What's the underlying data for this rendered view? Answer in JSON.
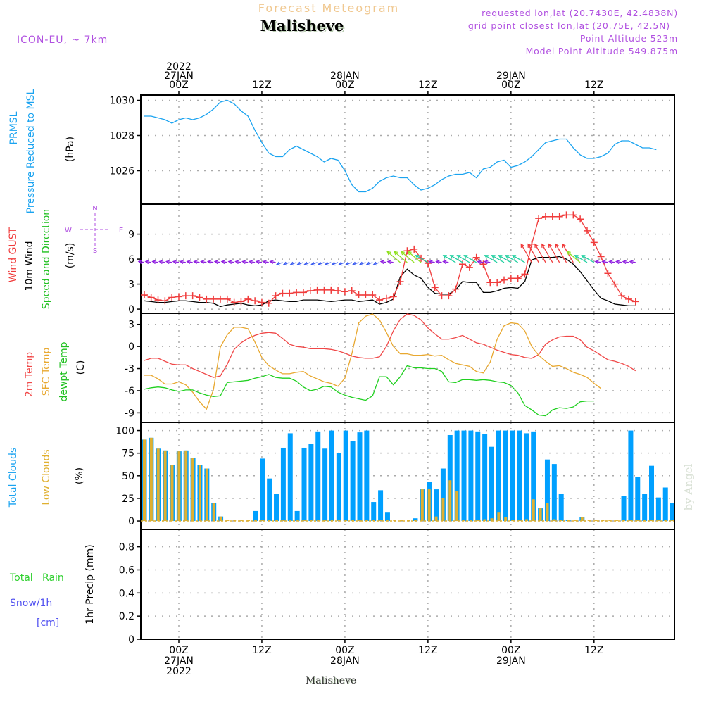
{
  "header": {
    "subtitle": "Forecast Meteogram",
    "title": "Malisheve",
    "model": "ICON-EU, ~ 7km",
    "requested": "requested lon,lat (20.7430E, 42.4838N)",
    "grid_point": "grid point closest lon,lat (20.75E, 42.5N)",
    "point_altitude": "Point Altitude 523m",
    "model_altitude": "Model Point Altitude 549.875m",
    "footer_station": "Malisheve",
    "watermark": "by Angel"
  },
  "colors": {
    "pressure": "#1aa3f0",
    "gust": "#f03c3c",
    "wind10m": "#000000",
    "temp2m": "#f04848",
    "sfc_temp": "#e8a830",
    "dewpt": "#20d020",
    "total_clouds": "#00a0ff",
    "low_clouds": "#e0b030",
    "rain_label": "#30d030",
    "snow_label": "#5050f0",
    "header_purple": "#b050e0",
    "subtitle": "#f0c890"
  },
  "time_axis": {
    "top_labels": [
      {
        "hour": 0,
        "lines": [
          "2022",
          "27JAN",
          "00Z"
        ]
      },
      {
        "hour": 12,
        "lines": [
          "12Z"
        ]
      },
      {
        "hour": 24,
        "lines": [
          "28JAN",
          "00Z"
        ]
      },
      {
        "hour": 36,
        "lines": [
          "12Z"
        ]
      },
      {
        "hour": 48,
        "lines": [
          "29JAN",
          "00Z"
        ]
      },
      {
        "hour": 60,
        "lines": [
          "12Z"
        ]
      }
    ],
    "bottom_labels": [
      {
        "hour": 0,
        "lines": [
          "00Z",
          "27JAN",
          "2022"
        ]
      },
      {
        "hour": 12,
        "lines": [
          "12Z"
        ]
      },
      {
        "hour": 24,
        "lines": [
          "00Z",
          "28JAN"
        ]
      },
      {
        "hour": 36,
        "lines": [
          "12Z"
        ]
      },
      {
        "hour": 48,
        "lines": [
          "00Z",
          "29JAN"
        ]
      },
      {
        "hour": 60,
        "lines": [
          "12Z"
        ]
      }
    ]
  },
  "compass": {
    "n": "N",
    "s": "S",
    "w": "W",
    "e": "E",
    "arrows": "<-|->"
  },
  "panels": {
    "pressure": {
      "labels": [
        "PRMSL",
        "Pressure Reduced to MSL"
      ],
      "unit": "(hPa)",
      "ticks": [
        1026,
        1028,
        1030
      ]
    },
    "wind": {
      "labels": [
        "Wind GUST",
        "10m Wind",
        "Speed and Direction"
      ],
      "unit": "(m/s)",
      "ticks": [
        0,
        3,
        6,
        9
      ]
    },
    "temp": {
      "labels": [
        "2m Temp",
        "SFC Temp",
        "dewpt Temp"
      ],
      "unit": "(C)",
      "ticks": [
        -9,
        -6,
        -3,
        0,
        3
      ]
    },
    "clouds": {
      "labels": [
        "Total Clouds",
        "Low Clouds"
      ],
      "unit": "(%)",
      "ticks": [
        0,
        25,
        50,
        75,
        100
      ]
    },
    "precip": {
      "labels": [
        "Total   Rain",
        "Snow/1h",
        "[cm]"
      ],
      "unit": "1hr Precip (mm)",
      "ticks": [
        "0",
        "0.2",
        "0.4",
        "0.6",
        "0.8"
      ]
    }
  },
  "chart_data": [
    {
      "type": "line",
      "title": "PRMSL Pressure Reduced to MSL",
      "ylabel": "hPa",
      "ylim": [
        1024.1,
        1030.3
      ],
      "x_hours_start": -5,
      "x_hours_step": 1,
      "series": [
        {
          "name": "PRMSL",
          "values": [
            1029.1,
            1029.1,
            1029.0,
            1028.9,
            1028.7,
            1028.9,
            1029.0,
            1028.9,
            1029.0,
            1029.2,
            1029.5,
            1029.9,
            1030.0,
            1029.8,
            1029.4,
            1029.1,
            1028.3,
            1027.6,
            1027.0,
            1026.8,
            1026.8,
            1027.2,
            1027.4,
            1027.2,
            1027.0,
            1026.8,
            1026.5,
            1026.7,
            1026.6,
            1026.0,
            1025.2,
            1024.8,
            1024.8,
            1025.0,
            1025.4,
            1025.6,
            1025.7,
            1025.6,
            1025.6,
            1025.2,
            1024.9,
            1025.0,
            1025.2,
            1025.5,
            1025.7,
            1025.8,
            1025.8,
            1025.9,
            1025.6,
            1026.1,
            1026.2,
            1026.5,
            1026.6,
            1026.2,
            1026.3,
            1026.5,
            1026.8,
            1027.2,
            1027.6,
            1027.7,
            1027.8,
            1027.8,
            1027.3,
            1026.9,
            1026.7,
            1026.7,
            1026.8,
            1027.0,
            1027.5,
            1027.7,
            1027.7,
            1027.5,
            1027.3,
            1027.3,
            1027.2
          ]
        }
      ]
    },
    {
      "type": "line",
      "title": "Wind GUST / 10m Wind Speed and Direction",
      "ylabel": "m/s",
      "ylim": [
        -0.5,
        12.6
      ],
      "x_hours_start": -5,
      "x_hours_step": 1,
      "series": [
        {
          "name": "Wind GUST",
          "values": [
            1.7,
            1.4,
            1.1,
            1.0,
            1.4,
            1.5,
            1.6,
            1.6,
            1.4,
            1.2,
            1.2,
            1.2,
            1.2,
            0.8,
            0.9,
            1.2,
            1.0,
            0.8,
            0.7,
            1.6,
            1.9,
            1.9,
            2.0,
            2.0,
            2.2,
            2.3,
            2.3,
            2.3,
            2.2,
            2.1,
            2.2,
            1.7,
            1.7,
            1.7,
            1.1,
            1.3,
            1.5,
            3.3,
            7.0,
            7.2,
            6.1,
            5.5,
            2.6,
            1.6,
            1.6,
            2.4,
            5.4,
            5.0,
            6.2,
            5.4,
            3.2,
            3.2,
            3.5,
            3.7,
            3.7,
            4.2,
            7.8,
            10.9,
            11.1,
            11.1,
            11.1,
            11.3,
            11.3,
            10.8,
            9.4,
            8.0,
            6.3,
            4.3,
            3.0,
            1.6,
            1.2,
            0.9
          ]
        },
        {
          "name": "10m Wind",
          "values": [
            1.0,
            0.9,
            0.8,
            0.8,
            0.9,
            1.0,
            1.0,
            0.9,
            0.8,
            0.8,
            0.7,
            0.3,
            0.5,
            0.6,
            0.7,
            0.5,
            0.4,
            0.5,
            1.0,
            1.1,
            1.0,
            0.9,
            0.9,
            1.1,
            1.1,
            1.1,
            1.0,
            0.9,
            1.0,
            1.1,
            1.1,
            0.9,
            1.0,
            1.1,
            0.6,
            0.8,
            1.2,
            3.9,
            4.8,
            4.1,
            3.7,
            2.6,
            1.9,
            1.8,
            1.8,
            2.3,
            3.3,
            3.2,
            3.2,
            2.0,
            2.0,
            2.2,
            2.5,
            2.6,
            2.5,
            3.3,
            5.9,
            6.2,
            6.2,
            6.2,
            6.3,
            6.0,
            5.4,
            4.5,
            3.4,
            2.3,
            1.3,
            1.0,
            0.6,
            0.5,
            0.4,
            0.4
          ]
        }
      ],
      "direction_arrows_level": 5.6
    },
    {
      "type": "line",
      "title": "2m Temp / SFC Temp / dewpt Temp",
      "ylabel": "C",
      "ylim": [
        -10.3,
        4.5
      ],
      "x_hours_start": -5,
      "x_hours_step": 1,
      "series": [
        {
          "name": "2m Temp",
          "values": [
            -1.9,
            -1.6,
            -1.6,
            -2.0,
            -2.4,
            -2.5,
            -2.5,
            -3.0,
            -3.4,
            -3.8,
            -4.2,
            -4.0,
            -2.4,
            -0.4,
            0.5,
            1.1,
            1.5,
            1.8,
            1.9,
            1.8,
            1.1,
            0.3,
            0.0,
            -0.1,
            -0.3,
            -0.3,
            -0.3,
            -0.4,
            -0.6,
            -0.9,
            -1.3,
            -1.5,
            -1.6,
            -1.6,
            -1.4,
            0.0,
            2.1,
            3.7,
            4.4,
            4.2,
            3.6,
            2.5,
            1.7,
            1.0,
            1.0,
            1.2,
            1.5,
            1.0,
            0.5,
            0.3,
            -0.1,
            -0.5,
            -0.8,
            -1.1,
            -1.2,
            -1.5,
            -1.6,
            -1.1,
            0.3,
            0.9,
            1.3,
            1.4,
            1.4,
            0.9,
            -0.1,
            -0.6,
            -1.2,
            -1.8,
            -2.0,
            -2.3,
            -2.7,
            -3.3
          ]
        },
        {
          "name": "SFC Temp",
          "values": [
            -3.9,
            -3.9,
            -4.4,
            -5.1,
            -5.1,
            -4.8,
            -5.2,
            -6.2,
            -7.5,
            -8.5,
            -5.9,
            -0.1,
            1.6,
            2.6,
            2.6,
            2.4,
            0.6,
            -1.5,
            -2.6,
            -3.2,
            -3.7,
            -3.7,
            -3.5,
            -3.4,
            -4.0,
            -4.4,
            -4.8,
            -5.0,
            -5.4,
            -4.3,
            -1.0,
            3.2,
            4.1,
            4.4,
            3.6,
            1.9,
            0.0,
            -1.0,
            -1.0,
            -1.2,
            -1.2,
            -1.1,
            -1.3,
            -1.2,
            -1.8,
            -2.3,
            -2.5,
            -2.7,
            -3.4,
            -3.6,
            -2.1,
            1.0,
            2.8,
            3.2,
            3.1,
            2.1,
            0.0,
            -1.2,
            -2.0,
            -2.7,
            -2.6,
            -3.0,
            -3.5,
            -3.8,
            -4.2,
            -5.0,
            -5.7
          ]
        },
        {
          "name": "dewpt Temp",
          "values": [
            -5.8,
            -5.6,
            -5.5,
            -5.6,
            -5.9,
            -6.1,
            -5.9,
            -5.9,
            -6.3,
            -6.6,
            -6.8,
            -6.7,
            -4.9,
            -4.8,
            -4.7,
            -4.6,
            -4.3,
            -4.1,
            -3.8,
            -4.2,
            -4.3,
            -4.3,
            -4.7,
            -5.5,
            -6.0,
            -5.8,
            -5.4,
            -5.5,
            -6.2,
            -6.6,
            -6.9,
            -7.1,
            -7.3,
            -6.7,
            -4.1,
            -4.1,
            -5.2,
            -4.1,
            -2.6,
            -2.9,
            -2.9,
            -3.0,
            -3.0,
            -3.4,
            -4.8,
            -4.9,
            -4.5,
            -4.5,
            -4.6,
            -4.5,
            -4.6,
            -4.8,
            -4.9,
            -5.3,
            -6.3,
            -8.0,
            -8.6,
            -9.3,
            -9.4,
            -8.6,
            -8.3,
            -8.4,
            -8.2,
            -7.5,
            -7.4,
            -7.4
          ]
        }
      ]
    },
    {
      "type": "bar",
      "title": "Total Clouds / Low Clouds",
      "ylabel": "%",
      "ylim": [
        0,
        100
      ],
      "x_hours_start": -5,
      "x_hours_step": 1,
      "series": [
        {
          "name": "Total Clouds",
          "values": [
            90,
            92,
            80,
            78,
            62,
            77,
            78,
            70,
            62,
            58,
            20,
            5,
            0,
            0,
            0,
            0,
            11,
            69,
            47,
            30,
            81,
            97,
            11,
            81,
            85,
            99,
            80,
            100,
            75,
            100,
            88,
            98,
            100,
            21,
            34,
            10,
            0,
            0,
            0,
            3,
            35,
            43,
            35,
            58,
            95,
            100,
            100,
            100,
            99,
            96,
            82,
            100,
            100,
            100,
            100,
            97,
            99,
            14,
            68,
            63,
            30,
            1,
            0,
            4,
            0,
            0,
            0,
            0,
            0,
            28,
            100,
            49,
            30,
            61,
            26,
            37,
            20
          ]
        },
        {
          "name": "Low Clouds",
          "values": [
            90,
            92,
            80,
            78,
            62,
            77,
            78,
            70,
            62,
            58,
            20,
            5,
            0,
            0,
            0,
            0,
            0,
            0,
            0,
            0,
            0,
            0,
            0,
            0,
            0,
            0,
            0,
            0,
            0,
            0,
            0,
            0,
            0,
            0,
            0,
            0,
            0,
            0,
            0,
            0,
            35,
            35,
            5,
            25,
            45,
            33,
            0,
            0,
            1,
            2,
            3,
            10,
            4,
            0,
            0,
            2,
            24,
            14,
            20,
            2,
            1,
            1,
            0,
            4,
            0,
            0,
            0,
            0,
            0,
            0,
            0,
            0,
            0,
            0,
            0,
            0,
            0
          ]
        }
      ]
    },
    {
      "type": "bar",
      "title": "1hr Precip",
      "ylabel": "1hr Precip (mm)",
      "ylim": [
        0,
        0.95
      ],
      "series": [
        {
          "name": "Total Rain",
          "values": []
        },
        {
          "name": "Snow/1h [cm]",
          "values": []
        }
      ]
    }
  ]
}
